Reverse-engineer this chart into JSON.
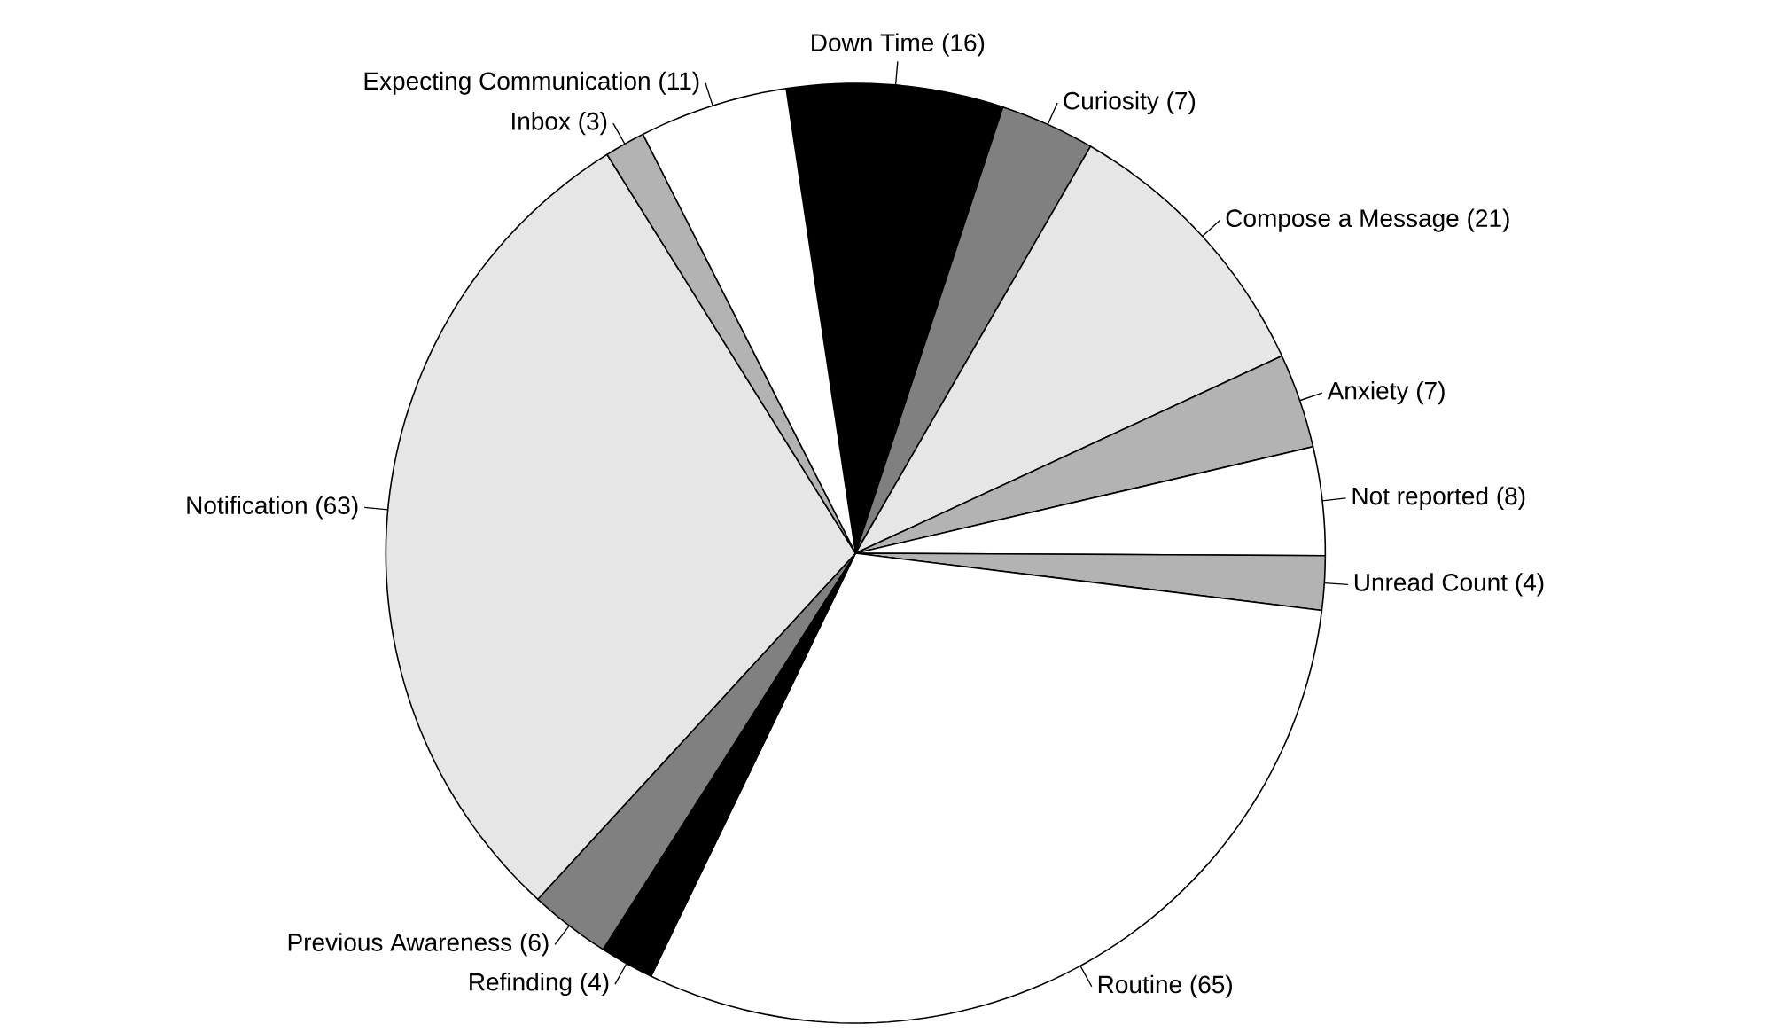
{
  "chart_data": {
    "type": "pie",
    "categories": [
      "Down Time",
      "Curiosity",
      "Compose a Message",
      "Anxiety",
      "Not reported",
      "Unread Count",
      "Routine",
      "Refinding",
      "Previous Awareness",
      "Notification",
      "Inbox",
      "Expecting Communication"
    ],
    "values": [
      16,
      7,
      21,
      7,
      8,
      4,
      65,
      4,
      6,
      63,
      3,
      11
    ],
    "value_labels": [
      "(16)",
      "(7)",
      "(21)",
      "(7)",
      "(8)",
      "(4)",
      "(65)",
      "(4)",
      "(6)",
      "(63)",
      "(3)",
      "(11)"
    ],
    "colors": [
      "#000000",
      "#808080",
      "#e6e6e6",
      "#b3b3b3",
      "#ffffff",
      "#b3b3b3",
      "#ffffff",
      "#000000",
      "#808080",
      "#e6e6e6",
      "#b3b3b3",
      "#ffffff"
    ]
  }
}
